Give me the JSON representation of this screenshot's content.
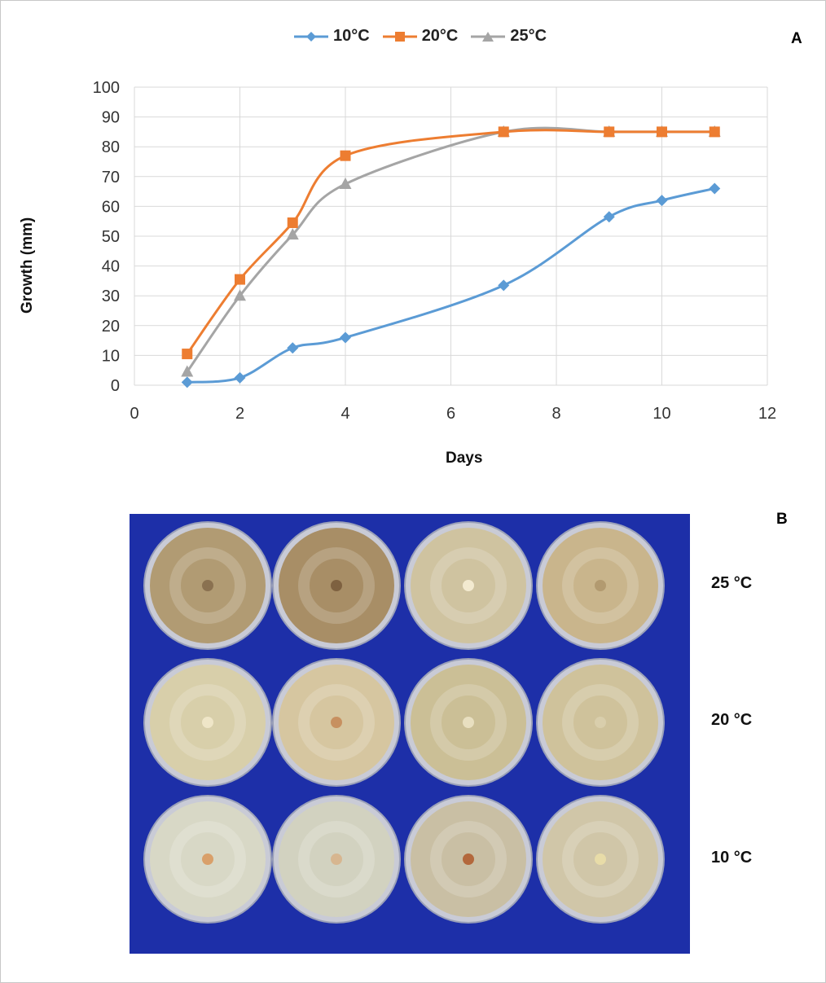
{
  "panels": {
    "a_label": "A",
    "b_label": "B"
  },
  "chart_data": {
    "type": "line",
    "title": "",
    "xlabel": "Days",
    "ylabel": "Growth (mm)",
    "xlim": [
      0,
      12
    ],
    "ylim": [
      0,
      100
    ],
    "xticks": [
      0,
      2,
      4,
      6,
      8,
      10,
      12
    ],
    "yticks": [
      0,
      10,
      20,
      30,
      40,
      50,
      60,
      70,
      80,
      90,
      100
    ],
    "grid": true,
    "legend_position": "top",
    "series": [
      {
        "name": "10°C",
        "color": "#5b9bd5",
        "marker": "diamond",
        "x": [
          1,
          2,
          3,
          4,
          7,
          9,
          10,
          11
        ],
        "y": [
          1,
          2.5,
          12.5,
          16,
          33.5,
          56.5,
          62,
          66
        ]
      },
      {
        "name": "20°C",
        "color": "#ed7d31",
        "marker": "square",
        "x": [
          1,
          2,
          3,
          4,
          7,
          9,
          10,
          11
        ],
        "y": [
          10.5,
          35.5,
          54.5,
          77,
          85,
          85,
          85,
          85
        ]
      },
      {
        "name": "25°C",
        "color": "#a5a5a5",
        "marker": "triangle",
        "x": [
          1,
          2,
          3,
          4,
          7,
          9,
          10,
          11
        ],
        "y": [
          4.5,
          30,
          50.5,
          67.5,
          85,
          85,
          85,
          85
        ]
      }
    ]
  },
  "photo": {
    "row_labels": [
      "25 °C",
      "20 °C",
      "10 °C"
    ],
    "background_color": "#1d2fa8",
    "rows": [
      {
        "plates": [
          "#b19b73",
          "#a88e66",
          "#cfc3a0",
          "#c9b58c"
        ],
        "centers": [
          "#8a7150",
          "#7e6140",
          "#f3ead0",
          "#b29a70"
        ]
      },
      {
        "plates": [
          "#d8cfaa",
          "#d6c6a0",
          "#cbbf96",
          "#cfc29b"
        ],
        "centers": [
          "#efe6c8",
          "#c79060",
          "#e8dfc0",
          "#d9ceac"
        ]
      },
      {
        "plates": [
          "#d8d8c6",
          "#d2d2c0",
          "#c9bfa4",
          "#d0c6a8"
        ],
        "centers": [
          "#d9a06a",
          "#d7b690",
          "#b3683c",
          "#e8dca8"
        ]
      }
    ]
  }
}
